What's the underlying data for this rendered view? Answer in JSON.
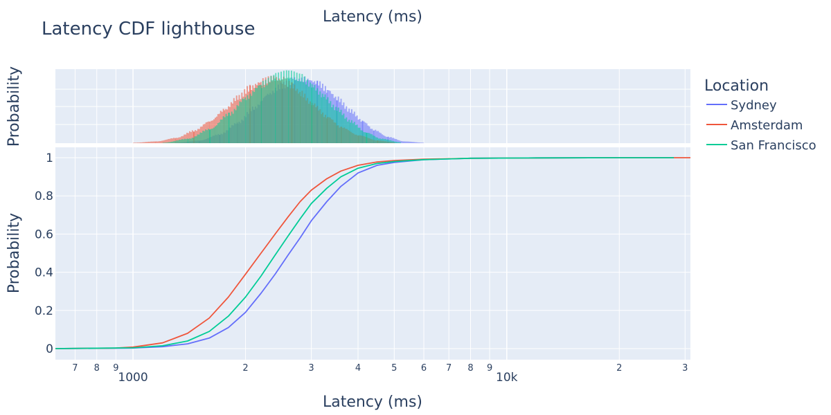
{
  "title": "Latency CDF lighthouse",
  "top_axis_title": "Latency (ms)",
  "x_axis_title": "Latency (ms)",
  "hist_y_title": "Probability",
  "cdf_y_title": "Probability",
  "legend": {
    "title": "Location",
    "items": [
      {
        "name": "Sydney",
        "color": "#636efa"
      },
      {
        "name": "Amsterdam",
        "color": "#ef553b"
      },
      {
        "name": "San Francisco",
        "color": "#00cc96"
      }
    ]
  },
  "chart_data": [
    {
      "type": "line",
      "title": "",
      "xlabel": "Latency (ms)",
      "ylabel": "Probability",
      "x_scale": "log",
      "xlim": [
        620,
        31000
      ],
      "ylim": [
        0,
        1
      ],
      "grid": true,
      "legend_placement": "right",
      "y_ticks": [
        {
          "v": 0,
          "label": "0"
        },
        {
          "v": 0.2,
          "label": "0.2"
        },
        {
          "v": 0.4,
          "label": "0.4"
        },
        {
          "v": 0.6,
          "label": "0.6"
        },
        {
          "v": 0.8,
          "label": "0.8"
        },
        {
          "v": 1,
          "label": "1"
        }
      ],
      "x_major_ticks": [
        {
          "v": 1000,
          "label": "1000"
        },
        {
          "v": 10000,
          "label": "10k"
        }
      ],
      "x_minor_ticks": [
        {
          "v": 700,
          "label": "7"
        },
        {
          "v": 800,
          "label": "8"
        },
        {
          "v": 900,
          "label": "9"
        },
        {
          "v": 2000,
          "label": "2"
        },
        {
          "v": 3000,
          "label": "3"
        },
        {
          "v": 4000,
          "label": "4"
        },
        {
          "v": 5000,
          "label": "5"
        },
        {
          "v": 6000,
          "label": "6"
        },
        {
          "v": 7000,
          "label": "7"
        },
        {
          "v": 8000,
          "label": "8"
        },
        {
          "v": 9000,
          "label": "9"
        },
        {
          "v": 20000,
          "label": "2"
        },
        {
          "v": 30000,
          "label": "3"
        }
      ],
      "series": [
        {
          "name": "Sydney",
          "color": "#636efa",
          "x": [
            620,
            1000,
            1200,
            1400,
            1600,
            1800,
            2000,
            2200,
            2400,
            2600,
            2800,
            3000,
            3300,
            3600,
            4000,
            4500,
            5000,
            6000,
            8000,
            12000,
            20000,
            28000
          ],
          "y": [
            0,
            0.003,
            0.01,
            0.025,
            0.055,
            0.11,
            0.19,
            0.29,
            0.39,
            0.49,
            0.58,
            0.67,
            0.77,
            0.85,
            0.92,
            0.96,
            0.975,
            0.99,
            0.997,
            0.999,
            1,
            1
          ]
        },
        {
          "name": "Amsterdam",
          "color": "#ef553b",
          "x": [
            620,
            900,
            1000,
            1200,
            1400,
            1600,
            1800,
            2000,
            2200,
            2400,
            2600,
            2800,
            3000,
            3300,
            3600,
            4000,
            4500,
            5000,
            6000,
            8000,
            12000,
            20000,
            31000
          ],
          "y": [
            0,
            0.003,
            0.008,
            0.03,
            0.08,
            0.16,
            0.27,
            0.39,
            0.5,
            0.6,
            0.69,
            0.77,
            0.83,
            0.89,
            0.93,
            0.96,
            0.978,
            0.985,
            0.992,
            0.997,
            0.999,
            1,
            1
          ]
        },
        {
          "name": "San Francisco",
          "color": "#00cc96",
          "x": [
            620,
            1000,
            1200,
            1400,
            1600,
            1800,
            2000,
            2200,
            2400,
            2600,
            2800,
            3000,
            3300,
            3600,
            4000,
            4500,
            5000,
            6000,
            8000,
            12000,
            20000,
            28000
          ],
          "y": [
            0,
            0.004,
            0.015,
            0.04,
            0.09,
            0.17,
            0.27,
            0.38,
            0.49,
            0.59,
            0.68,
            0.76,
            0.84,
            0.9,
            0.945,
            0.97,
            0.98,
            0.99,
            0.997,
            0.999,
            1,
            1
          ]
        }
      ]
    },
    {
      "type": "histogram",
      "title": "",
      "xlabel": "Latency (ms)",
      "ylabel": "Probability",
      "x_scale": "log",
      "xlim": [
        620,
        31000
      ],
      "grid": true,
      "series": [
        {
          "name": "Sydney",
          "color": "#636efa",
          "x": [
            1300,
            1500,
            1700,
            1900,
            2100,
            2300,
            2500,
            2700,
            2900,
            3100,
            3300,
            3500,
            3800,
            4100,
            4400,
            4800,
            5300,
            6000
          ],
          "y": [
            0.0005,
            0.003,
            0.01,
            0.023,
            0.04,
            0.056,
            0.066,
            0.072,
            0.073,
            0.069,
            0.061,
            0.051,
            0.037,
            0.025,
            0.015,
            0.007,
            0.002,
            0.0005
          ]
        },
        {
          "name": "Amsterdam",
          "color": "#ef553b",
          "x": [
            1000,
            1150,
            1300,
            1450,
            1600,
            1750,
            1900,
            2050,
            2200,
            2350,
            2500,
            2650,
            2800,
            3000,
            3300,
            3600,
            4000,
            4500,
            5000
          ],
          "y": [
            0.0005,
            0.002,
            0.006,
            0.014,
            0.025,
            0.038,
            0.052,
            0.063,
            0.07,
            0.074,
            0.072,
            0.066,
            0.057,
            0.045,
            0.03,
            0.018,
            0.009,
            0.003,
            0.001
          ]
        },
        {
          "name": "San Francisco",
          "color": "#00cc96",
          "x": [
            1200,
            1400,
            1600,
            1800,
            2000,
            2200,
            2400,
            2600,
            2800,
            3000,
            3200,
            3500,
            3800,
            4200,
            4600,
            5200
          ],
          "y": [
            0.0005,
            0.005,
            0.016,
            0.033,
            0.052,
            0.067,
            0.076,
            0.079,
            0.075,
            0.066,
            0.055,
            0.039,
            0.025,
            0.012,
            0.005,
            0.001
          ]
        }
      ]
    }
  ]
}
